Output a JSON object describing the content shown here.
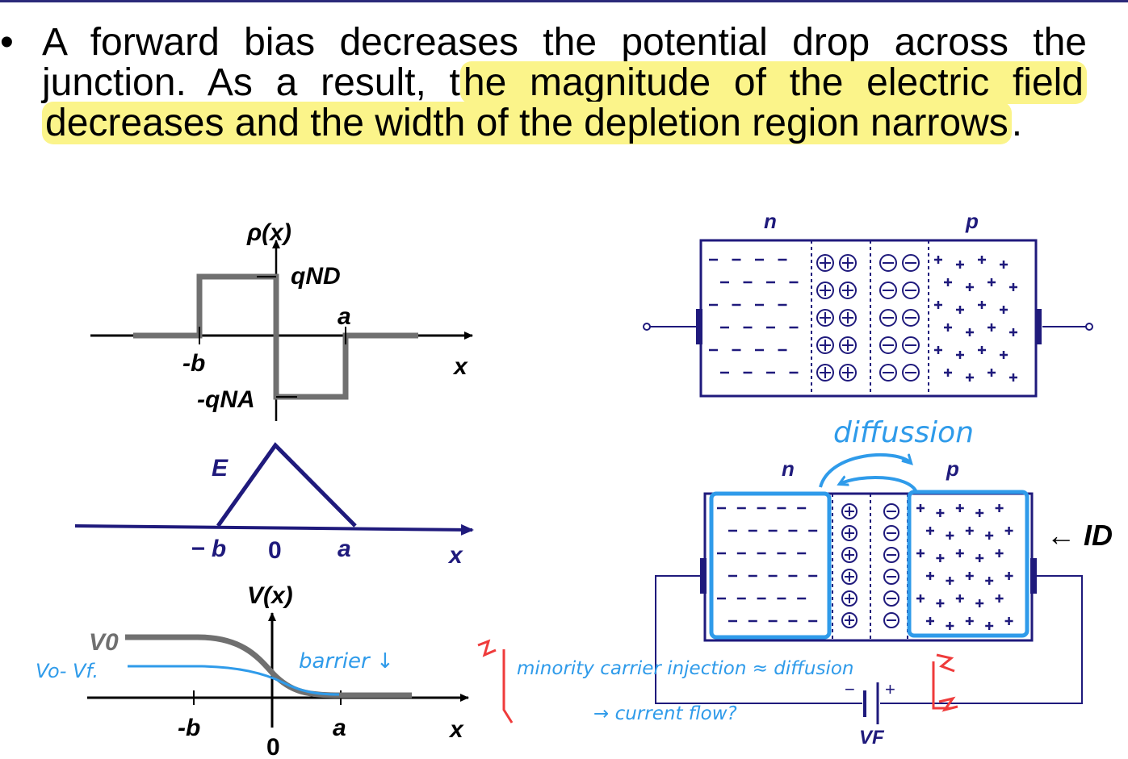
{
  "slide": {
    "bullet_symbol": "•",
    "text_plain": "A forward bias decreases the potential drop across the junction.  As a result, t",
    "text_highlight": "he magnitude of the electric field decreases and the width of the depletion region narrows",
    "text_end": "."
  },
  "charge_plot": {
    "ylabel": "ρ(x)",
    "pos_level": "qND",
    "neg_level": "-qNA",
    "label_a": "a",
    "label_b": "-b",
    "xlabel": "x"
  },
  "field_plot": {
    "ylabel": "E",
    "tick_minus_b": "− b",
    "tick_zero": "0",
    "tick_a": "a",
    "xlabel": "x"
  },
  "potential_plot": {
    "ylabel": "V(x)",
    "label_v0": "V0",
    "label_b": "-b",
    "label_zero": "0",
    "label_a": "a",
    "xlabel": "x"
  },
  "junction_top": {
    "label_n": "n",
    "label_p": "p"
  },
  "junction_bottom": {
    "label_n": "n",
    "label_p": "p",
    "current_label": "← ID",
    "source_label": "VF",
    "minus": "−",
    "plus": "+"
  },
  "handwritten": {
    "vf_label": "Vo- Vf.",
    "barrier": "barrier ↓",
    "diffusion": "diffussion",
    "note_line1": "minority carrier injection ≈ diffusion",
    "note_line2": "→ current flow?"
  },
  "colors": {
    "navy": "#1f1a7c",
    "gray_curve": "#6b6b6b",
    "blue_ink": "#2f9bea",
    "red_ink": "#ef3b3b",
    "highlight": "#fbf48a"
  }
}
